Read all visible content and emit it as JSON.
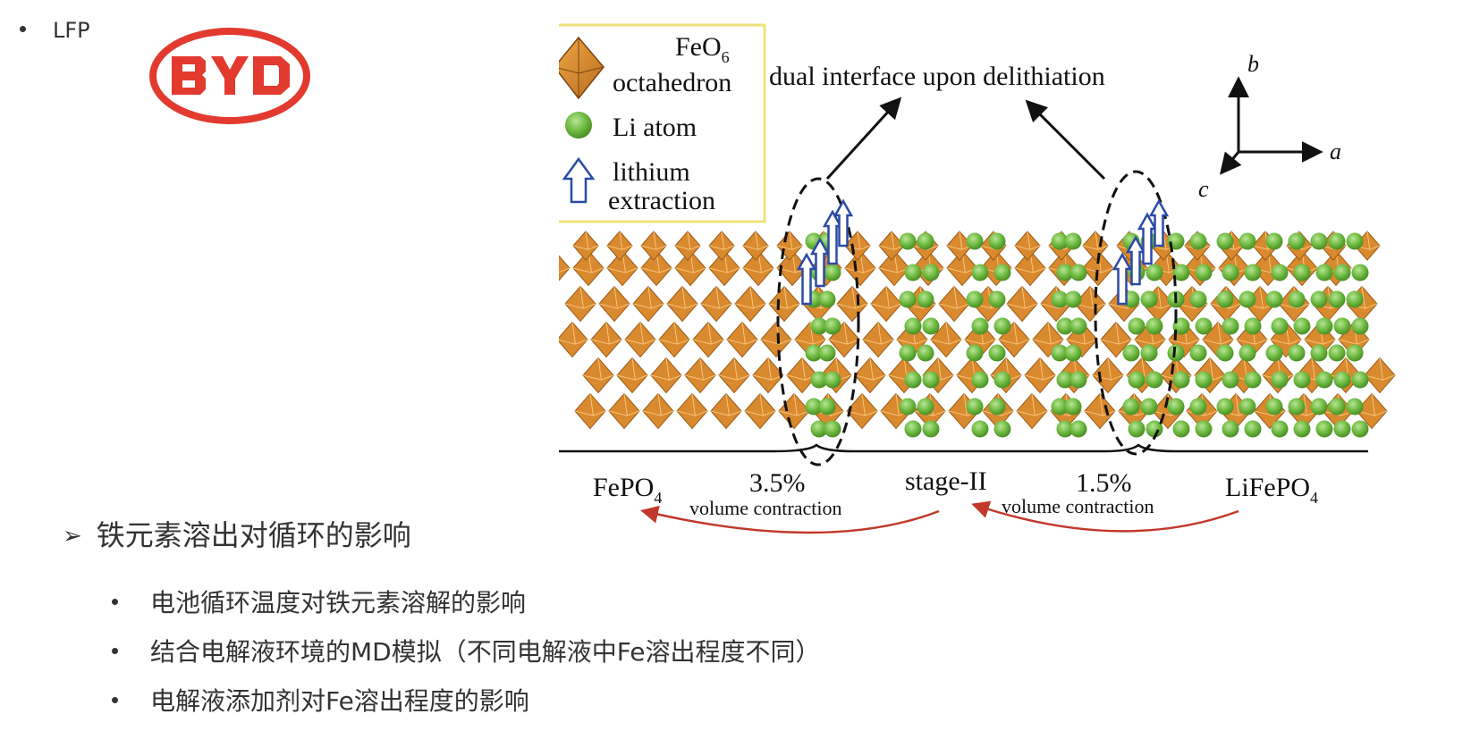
{
  "top_bullet": {
    "label": "LFP"
  },
  "logo": {
    "text": "BYD",
    "color": "#e23a2f"
  },
  "figure": {
    "legend": {
      "feo6_title": "FeO",
      "feo6_subscript": "6",
      "feo6_label": "octahedron",
      "li_label": "Li atom",
      "extraction_line1": "lithium",
      "extraction_line2": "extraction",
      "border_color": "#f0e27a"
    },
    "top_label": "dual interface upon delithiation",
    "axes": {
      "a": "a",
      "b": "b",
      "c": "c"
    },
    "bottom": {
      "fepo4": "FePO",
      "fepo4_sub": "4",
      "pct_left": "3.5%",
      "vol_left": "volume contraction",
      "stage": "stage-II",
      "pct_right": "1.5%",
      "vol_right": "volume contraction",
      "lifepo4": "LiFePO",
      "lifepo4_sub": "4"
    },
    "colors": {
      "fe_octahedron": "#d9892e",
      "fe_octahedron_dark": "#9a5a16",
      "li_atom": "#6cb83f",
      "li_atom_light": "#a6dc7e",
      "arrow_blue": "#2b4aa6",
      "arc_red": "#c0392b"
    }
  },
  "section": {
    "arrow_glyph": "➢",
    "heading": "铁元素溶出对循环的影响",
    "items": [
      "电池循环温度对铁元素溶解的影响",
      "结合电解液环境的MD模拟（不同电解液中Fe溶出程度不同）",
      "电解液添加剂对Fe溶出程度的影响"
    ]
  }
}
